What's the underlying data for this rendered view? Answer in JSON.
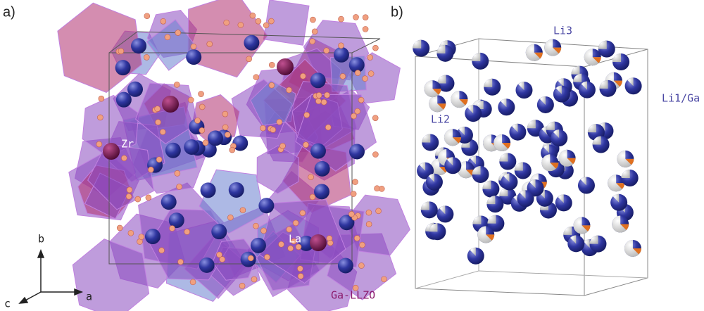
{
  "panels": [
    {
      "label": "a)",
      "annotations": [
        "Zr",
        "La"
      ],
      "caption": "Ga-LLZO",
      "axes": [
        "b",
        "c",
        "a"
      ]
    },
    {
      "label": "b)",
      "annotations": [
        "Li3",
        "Li2",
        "Li1/Ga"
      ]
    }
  ]
}
